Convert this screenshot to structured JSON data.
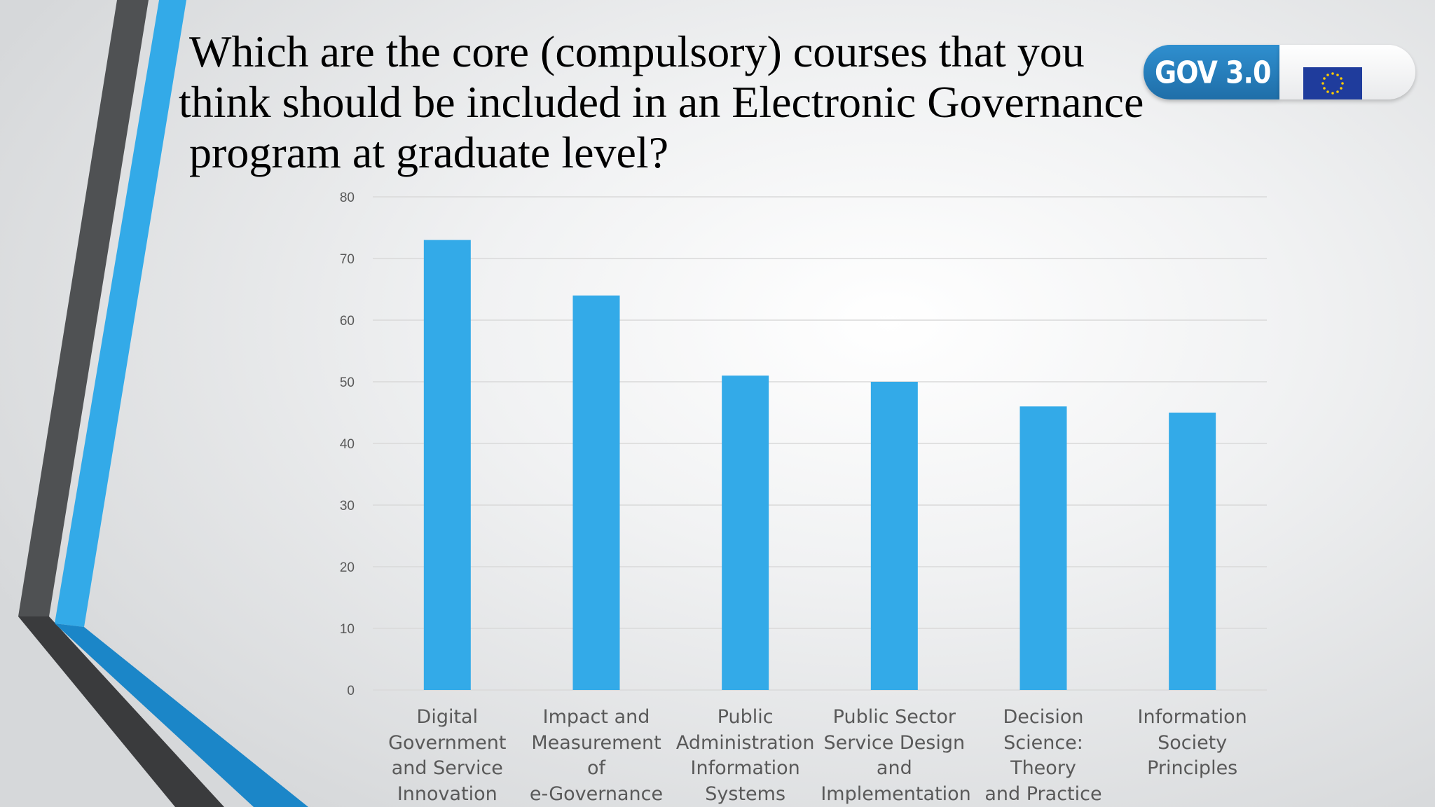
{
  "slide": {
    "title_lines": [
      "Which are the core (compulsory) courses that you",
      "think should be included in an Electronic Governance",
      "program at graduate level?"
    ],
    "logo_text": "GOV 3.0",
    "accent_color": "#33aae8",
    "dark_color": "#454749"
  },
  "chart_data": {
    "type": "bar",
    "categories": [
      "Digital\nGovernment\nand Service\nInnovation",
      "Impact and\nMeasurement of\ne-Governance",
      "Public\nAdministration\nInformation\nSystems",
      "Public Sector\nService Design\nand\nImplementation",
      "Decision\nScience: Theory\nand Practice",
      "Information\nSociety\nPrinciples"
    ],
    "values": [
      73,
      64,
      51,
      50,
      46,
      45
    ],
    "ylim": [
      0,
      80
    ],
    "yticks": [
      "0",
      "10",
      "20",
      "30",
      "40",
      "50",
      "60",
      "70",
      "80"
    ],
    "bar_color": "#33aae8",
    "grid": true,
    "title": "",
    "xlabel": "",
    "ylabel": ""
  }
}
